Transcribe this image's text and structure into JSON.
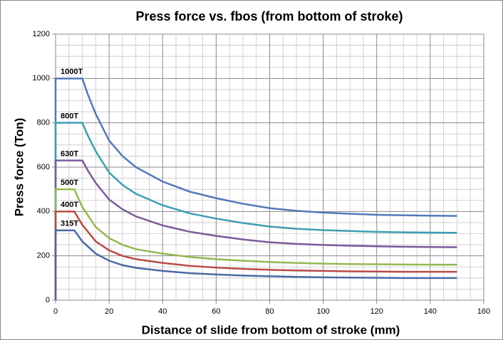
{
  "chart_data": {
    "type": "line",
    "title": "Press force vs. fbos (from bottom of stroke)",
    "xlabel": "Distance of slide from bottom of stroke (mm)",
    "ylabel": "Press force (Ton)",
    "xlim": [
      0,
      160
    ],
    "xticks": [
      0,
      20,
      40,
      60,
      80,
      100,
      120,
      140,
      160
    ],
    "ylim": [
      0,
      1200
    ],
    "yticks": [
      0,
      200,
      400,
      600,
      800,
      1000,
      1200
    ],
    "xminorticks": [
      5,
      10,
      15,
      25,
      30,
      35,
      45,
      50,
      55,
      65,
      70,
      75,
      85,
      90,
      95,
      105,
      110,
      115,
      125,
      130,
      135,
      145,
      150,
      155
    ],
    "yminorticks": [
      50,
      100,
      150,
      250,
      300,
      350,
      450,
      500,
      550,
      650,
      700,
      750,
      850,
      900,
      950,
      1050,
      1100,
      1150
    ],
    "grid": true,
    "series": [
      {
        "name": "1000T",
        "color": "#5179b9",
        "x": [
          0,
          0,
          10,
          12,
          15,
          20,
          25,
          30,
          40,
          50,
          60,
          70,
          80,
          90,
          100,
          110,
          120,
          130,
          140,
          150
        ],
        "values": [
          0,
          1000,
          1000,
          930,
          840,
          720,
          650,
          600,
          535,
          490,
          460,
          435,
          415,
          403,
          395,
          390,
          385,
          383,
          381,
          380
        ]
      },
      {
        "name": "800T",
        "color": "#3e9db3",
        "x": [
          0,
          0,
          10,
          12,
          15,
          20,
          25,
          30,
          40,
          50,
          60,
          70,
          80,
          90,
          100,
          110,
          120,
          130,
          140,
          150
        ],
        "values": [
          0,
          800,
          800,
          744,
          672,
          576,
          520,
          480,
          428,
          392,
          368,
          348,
          332,
          322,
          316,
          312,
          308,
          306,
          305,
          304
        ]
      },
      {
        "name": "630T",
        "color": "#7a5a9c",
        "x": [
          0,
          0,
          10,
          12,
          15,
          20,
          25,
          30,
          40,
          50,
          60,
          70,
          80,
          90,
          100,
          110,
          120,
          130,
          140,
          150
        ],
        "values": [
          0,
          630,
          630,
          586,
          529,
          454,
          410,
          378,
          337,
          309,
          290,
          274,
          261,
          254,
          249,
          246,
          243,
          241,
          240,
          239
        ]
      },
      {
        "name": "500T",
        "color": "#94b850",
        "x": [
          0,
          0,
          7,
          10,
          15,
          20,
          25,
          30,
          40,
          50,
          60,
          70,
          80,
          90,
          100,
          110,
          120,
          130,
          140,
          150
        ],
        "values": [
          0,
          500,
          500,
          420,
          330,
          280,
          250,
          230,
          210,
          195,
          185,
          178,
          172,
          168,
          165,
          163,
          162,
          161,
          160,
          160
        ]
      },
      {
        "name": "400T",
        "color": "#b94a47",
        "x": [
          0,
          0,
          7,
          10,
          15,
          20,
          25,
          30,
          40,
          50,
          60,
          70,
          80,
          90,
          100,
          110,
          120,
          130,
          140,
          150
        ],
        "values": [
          0,
          400,
          400,
          340,
          265,
          225,
          200,
          185,
          168,
          155,
          147,
          141,
          137,
          134,
          132,
          130,
          129,
          128,
          128,
          128
        ]
      },
      {
        "name": "315T",
        "color": "#4a6aa5",
        "x": [
          0,
          0,
          7,
          10,
          15,
          20,
          25,
          30,
          40,
          50,
          60,
          70,
          80,
          90,
          100,
          110,
          120,
          130,
          140,
          150
        ],
        "values": [
          0,
          315,
          315,
          265,
          210,
          178,
          158,
          146,
          132,
          122,
          116,
          111,
          108,
          105,
          103,
          102,
          101,
          100,
          100,
          100
        ]
      }
    ]
  }
}
